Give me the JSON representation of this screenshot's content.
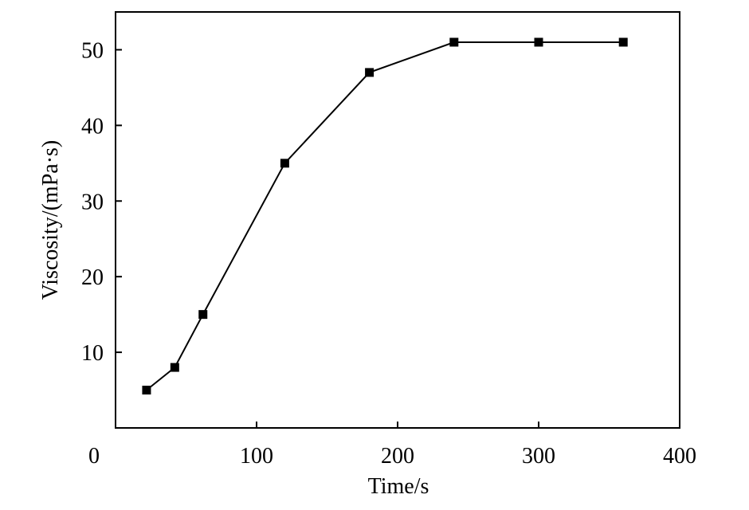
{
  "chart_data": {
    "type": "line",
    "title": "",
    "xlabel": "Time/s",
    "ylabel": "Viscosity/(mPa·s)",
    "xlim": [
      0,
      400
    ],
    "ylim": [
      0,
      55
    ],
    "x_ticks": [
      0,
      100,
      200,
      300,
      400
    ],
    "y_ticks": [
      10,
      20,
      30,
      40,
      50
    ],
    "grid": false,
    "legend": "none",
    "marker": "square",
    "color": "#000000",
    "series": [
      {
        "x": [
          22,
          42,
          62,
          120,
          180,
          240,
          300,
          360
        ],
        "y": [
          5,
          8,
          15,
          35,
          47,
          51,
          51,
          51
        ]
      }
    ]
  }
}
